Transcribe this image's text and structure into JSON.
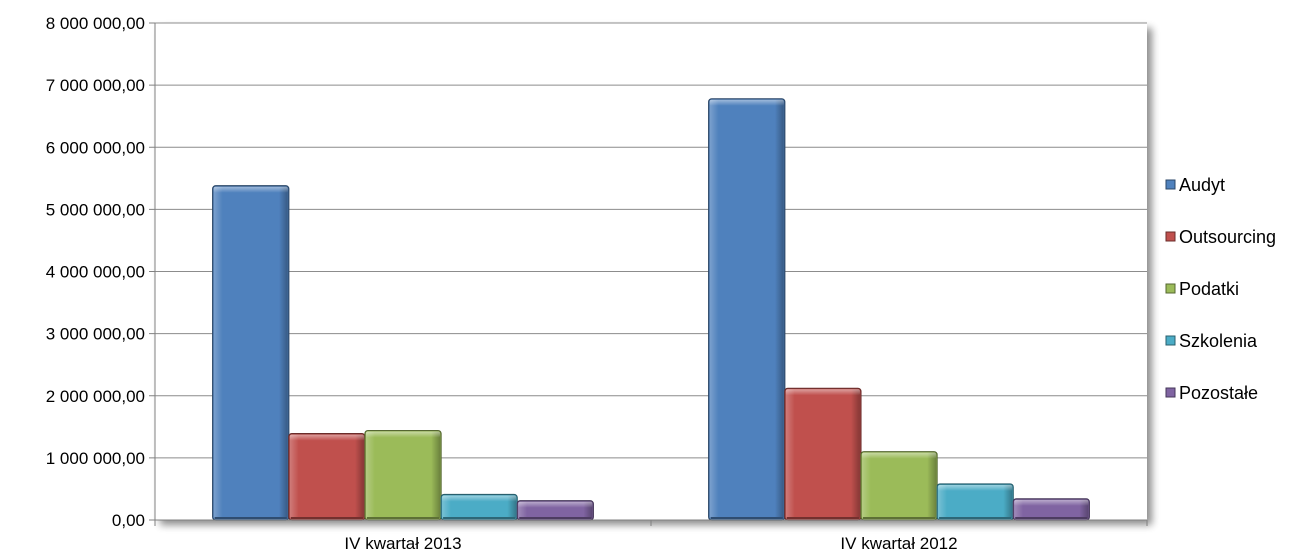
{
  "chart_data": {
    "type": "bar",
    "categories": [
      "IV kwartał 2013",
      "IV kwartał 2012"
    ],
    "series": [
      {
        "name": "Audyt",
        "color": "#4F81BD",
        "values": [
          5380000,
          6780000
        ]
      },
      {
        "name": "Outsourcing",
        "color": "#C0504D",
        "values": [
          1390000,
          2120000
        ]
      },
      {
        "name": "Podatki",
        "color": "#9BBB59",
        "values": [
          1440000,
          1100000
        ]
      },
      {
        "name": "Szkolenia",
        "color": "#4BACC6",
        "values": [
          410000,
          580000
        ]
      },
      {
        "name": "Pozostałe",
        "color": "#8064A2",
        "values": [
          310000,
          340000
        ]
      }
    ],
    "ylim": [
      0,
      8000000
    ],
    "yticks": [
      0,
      1000000,
      2000000,
      3000000,
      4000000,
      5000000,
      6000000,
      7000000,
      8000000
    ],
    "ytick_labels": [
      "0,00",
      "1 000 000,00",
      "2 000 000,00",
      "3 000 000,00",
      "4 000 000,00",
      "5 000 000,00",
      "6 000 000,00",
      "7 000 000,00",
      "8 000 000,00"
    ],
    "grid": true,
    "legend_position": "right",
    "title": "",
    "xlabel": "",
    "ylabel": ""
  }
}
